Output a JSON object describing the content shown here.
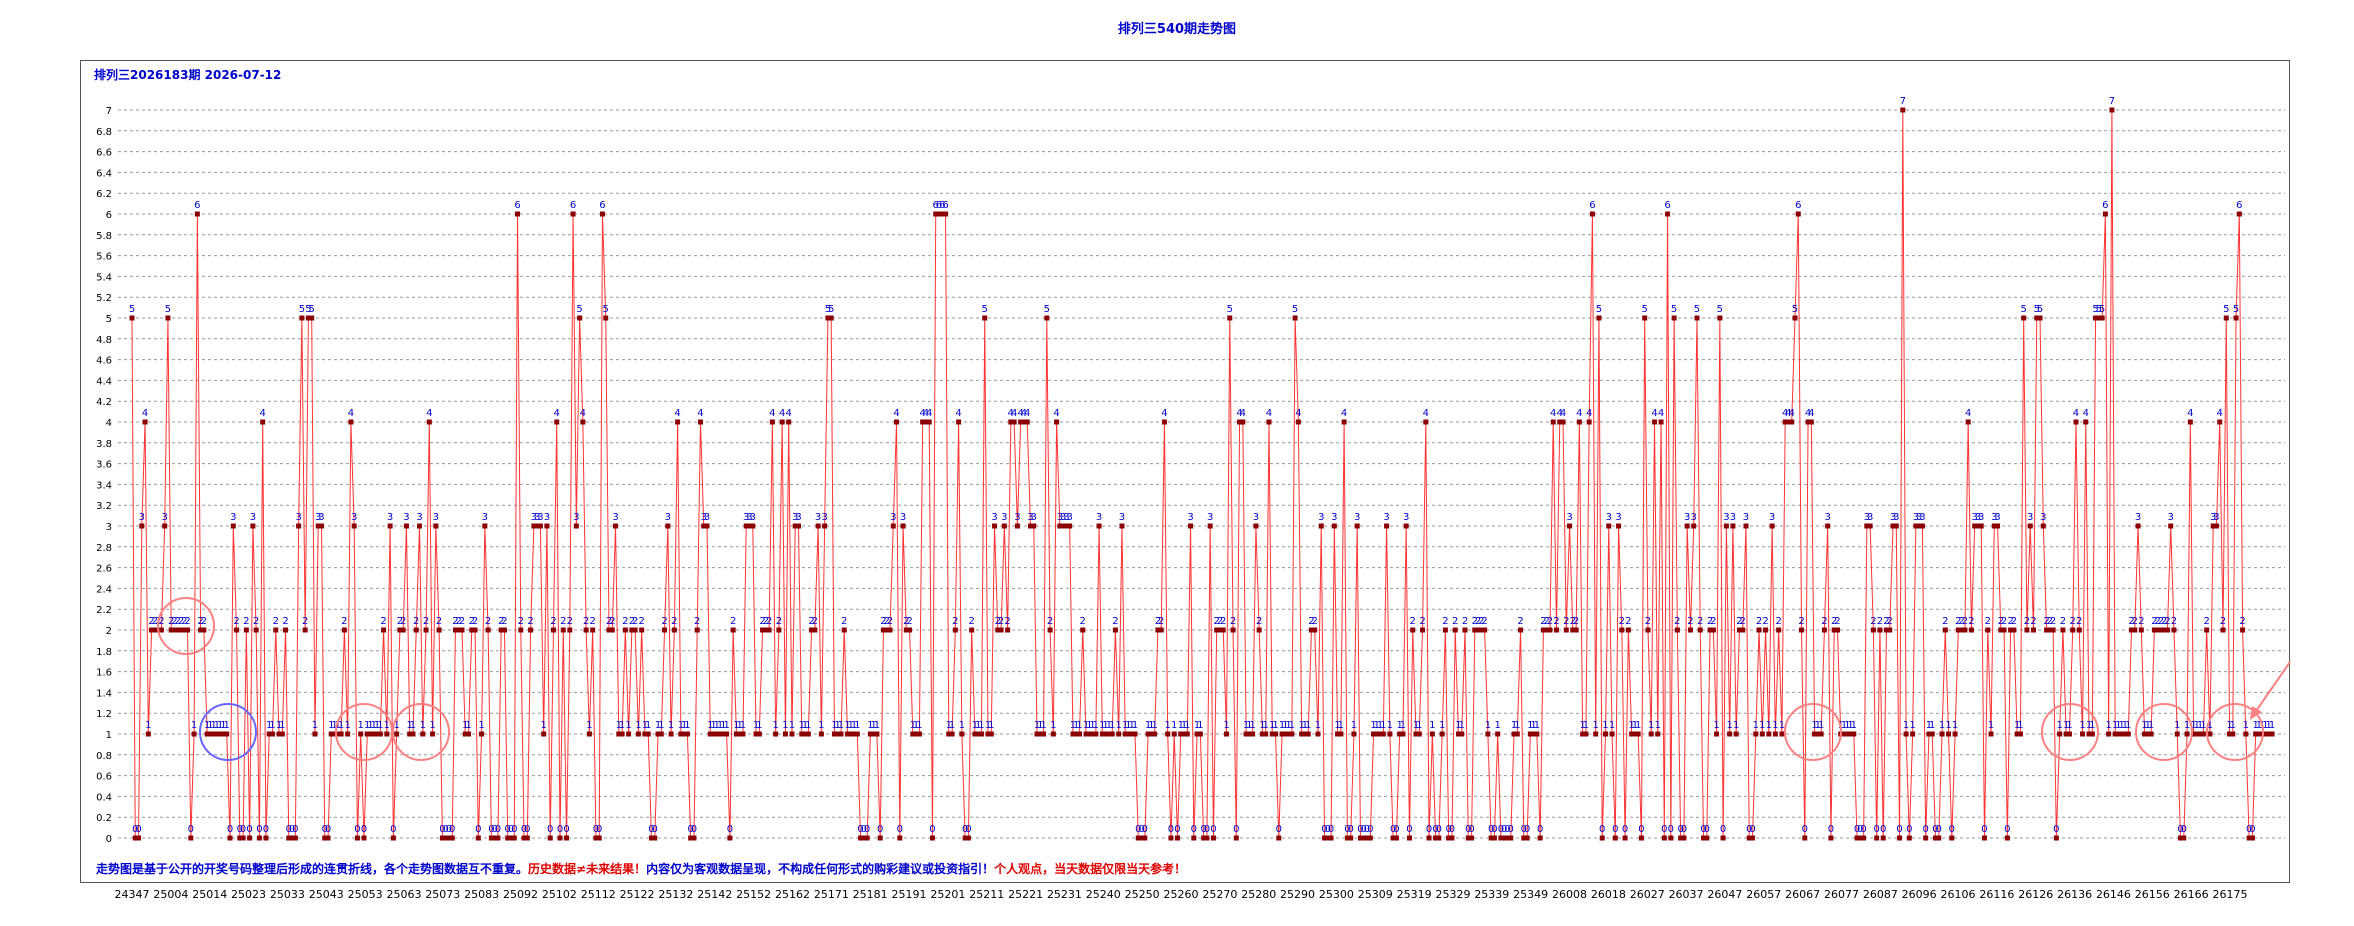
{
  "page": {
    "title": "排列三540期走势图"
  },
  "disclaimer": {
    "part1": "走势图是基于公开的开奖号码整理后形成的连贯折线，各个走势图数据互不重复。",
    "part2": "历史数据≠未来结果！",
    "part3": "内容仅为客观数据呈现，不构成任何形式的购彩建议或投资指引！",
    "part4": "个人观点，当天数据仅限当天参考！"
  },
  "colors": {
    "line": "#ff3333",
    "point": "#8b0000",
    "label": "#0000cc",
    "grid": "#999999",
    "circle_red": "#ff8080",
    "circle_blue": "#6666ff"
  },
  "chart_data": {
    "type": "line",
    "title": "排列三2026183期 2026-07-12",
    "ylim": [
      0,
      7.2
    ],
    "yticks": [
      "0",
      "0.2",
      "0.4",
      "0.6",
      "0.8",
      "1",
      "1.2",
      "1.4",
      "1.6",
      "1.8",
      "2",
      "2.2",
      "2.4",
      "2.6",
      "2.8",
      "3",
      "3.2",
      "3.4",
      "3.6",
      "3.8",
      "4",
      "4.2",
      "4.4",
      "4.6",
      "4.8",
      "5",
      "5.2",
      "5.4",
      "5.6",
      "5.8",
      "6",
      "6.2",
      "6.4",
      "6.6",
      "6.8",
      "7"
    ],
    "x_tick_labels": [
      "24347",
      "25004",
      "25014",
      "25023",
      "25033",
      "25043",
      "25053",
      "25063",
      "25073",
      "25083",
      "25092",
      "25102",
      "25112",
      "25122",
      "25132",
      "25142",
      "25152",
      "25162",
      "25171",
      "25181",
      "25191",
      "25201",
      "25211",
      "25221",
      "25231",
      "25240",
      "25250",
      "25260",
      "25270",
      "25280",
      "25290",
      "25300",
      "25309",
      "25319",
      "25329",
      "25339",
      "25349",
      "26008",
      "26018",
      "26027",
      "26037",
      "26047",
      "26057",
      "26067",
      "26077",
      "26087",
      "26096",
      "26106",
      "26116",
      "26126",
      "26136",
      "26146",
      "26156",
      "26166",
      "26175"
    ],
    "grid": true,
    "values": [
      5,
      0,
      0,
      3,
      4,
      1,
      2,
      2,
      2,
      2,
      3,
      5,
      2,
      2,
      2,
      2,
      2,
      2,
      0,
      1,
      6,
      2,
      2,
      1,
      1,
      1,
      1,
      1,
      1,
      1,
      0,
      3,
      2,
      0,
      0,
      2,
      0,
      3,
      2,
      0,
      4,
      0,
      1,
      1,
      2,
      1,
      1,
      2,
      0,
      0,
      0,
      3,
      5,
      2,
      5,
      5,
      1,
      3,
      3,
      0,
      0,
      1,
      1,
      1,
      1,
      2,
      1,
      4,
      3,
      0,
      1,
      0,
      1,
      1,
      1,
      1,
      1,
      2,
      1,
      3,
      0,
      1,
      2,
      2,
      3,
      1,
      1,
      2,
      3,
      1,
      2,
      4,
      1,
      3,
      2,
      0,
      0,
      0,
      0,
      2,
      2,
      2,
      1,
      1,
      2,
      2,
      0,
      1,
      3,
      2,
      0,
      0,
      0,
      2,
      2,
      0,
      0,
      0,
      6,
      2,
      0,
      0,
      2,
      3,
      3,
      3,
      1,
      3,
      0,
      2,
      4,
      0,
      2,
      0,
      2,
      6,
      3,
      5,
      4,
      2,
      1,
      2,
      0,
      0,
      6,
      5,
      2,
      2,
      3,
      1,
      1,
      2,
      1,
      2,
      2,
      1,
      2,
      1,
      1,
      0,
      0,
      1,
      1,
      2,
      3,
      1,
      2,
      4,
      1,
      1,
      1,
      0,
      0,
      2,
      4,
      3,
      3,
      1,
      1,
      1,
      1,
      1,
      1,
      0,
      2,
      1,
      1,
      1,
      3,
      3,
      3,
      1,
      1,
      2,
      2,
      2,
      4,
      1,
      2,
      4,
      1,
      4,
      1,
      3,
      3,
      1,
      1,
      1,
      2,
      2,
      3,
      1,
      3,
      5,
      5,
      1,
      1,
      1,
      2,
      1,
      1,
      1,
      1,
      0,
      0,
      0,
      1,
      1,
      1,
      0,
      2,
      2,
      2,
      3,
      4,
      0,
      3,
      2,
      2,
      1,
      1,
      1,
      4,
      4,
      4,
      0,
      6,
      6,
      6,
      6,
      1,
      1,
      2,
      4,
      1,
      0,
      0,
      2,
      1,
      1,
      1,
      5,
      1,
      1,
      3,
      2,
      2,
      3,
      2,
      4,
      4,
      3,
      4,
      4,
      4,
      3,
      3,
      1,
      1,
      1,
      5,
      2,
      1,
      4,
      3,
      3,
      3,
      3,
      1,
      1,
      1,
      2,
      1,
      1,
      1,
      1,
      3,
      1,
      1,
      1,
      1,
      2,
      1,
      3,
      1,
      1,
      1,
      1,
      0,
      0,
      0,
      1,
      1,
      1,
      2,
      2,
      4,
      1,
      0,
      1,
      0,
      1,
      1,
      1,
      3,
      0,
      1,
      1,
      0,
      0,
      3,
      0,
      2,
      2,
      2,
      1,
      5,
      2,
      0,
      4,
      4,
      1,
      1,
      1,
      3,
      2,
      1,
      1,
      4,
      1,
      1,
      0,
      1,
      1,
      1,
      1,
      5,
      4,
      1,
      1,
      1,
      2,
      2,
      1,
      3,
      0,
      0,
      0,
      3,
      1,
      1,
      4,
      0,
      0,
      1,
      3,
      0,
      0,
      0,
      0,
      1,
      1,
      1,
      1,
      3,
      1,
      0,
      0,
      1,
      1,
      3,
      0,
      2,
      1,
      1,
      2,
      4,
      0,
      1,
      0,
      0,
      1,
      2,
      0,
      0,
      2,
      1,
      1,
      2,
      0,
      0,
      2,
      2,
      2,
      2,
      1,
      0,
      0,
      1,
      0,
      0,
      0,
      0,
      1,
      1,
      2,
      0,
      0,
      1,
      1,
      1,
      0,
      2,
      2,
      2,
      4,
      2,
      4,
      4,
      2,
      3,
      2,
      2,
      4,
      1,
      1,
      4,
      6,
      1,
      5,
      0,
      1,
      3,
      1,
      0,
      3,
      2,
      0,
      2,
      1,
      1,
      1,
      0,
      5,
      2,
      1,
      4,
      1,
      4,
      0,
      6,
      0,
      5,
      2,
      0,
      0,
      3,
      2,
      3,
      5,
      2,
      0,
      0,
      2,
      2,
      1,
      5,
      0,
      3,
      1,
      3,
      1,
      2,
      2,
      3,
      0,
      0,
      1,
      2,
      1,
      2,
      1,
      3,
      1,
      2,
      1,
      4,
      4,
      4,
      5,
      6,
      2,
      0,
      4,
      4,
      1,
      1,
      1,
      2,
      3,
      0,
      2,
      2,
      1,
      1,
      1,
      1,
      1,
      0,
      0,
      0,
      3,
      3,
      2,
      0,
      2,
      0,
      2,
      2,
      3,
      3,
      0,
      7,
      1,
      0,
      1,
      3,
      3,
      3,
      0,
      1,
      1,
      0,
      0,
      1,
      2,
      1,
      0,
      1,
      2,
      2,
      2,
      4,
      2,
      3,
      3,
      3,
      0,
      2,
      1,
      3,
      3,
      2,
      2,
      0,
      2,
      2,
      1,
      1,
      5,
      2,
      3,
      2,
      5,
      5,
      3,
      2,
      2,
      2,
      0,
      1,
      2,
      1,
      1,
      2,
      4,
      2,
      1,
      4,
      1,
      1,
      5,
      5,
      5,
      6,
      1,
      7,
      1,
      1,
      1,
      1,
      1,
      2,
      2,
      3,
      2,
      1,
      1,
      1,
      2,
      2,
      2,
      2,
      2,
      3,
      2,
      1,
      0,
      0,
      1,
      4,
      1,
      1,
      1,
      1,
      2,
      1,
      3,
      3,
      4,
      2,
      5,
      1,
      1,
      5,
      6,
      2,
      1,
      0,
      0,
      1,
      1,
      1,
      1,
      1,
      1
    ]
  }
}
